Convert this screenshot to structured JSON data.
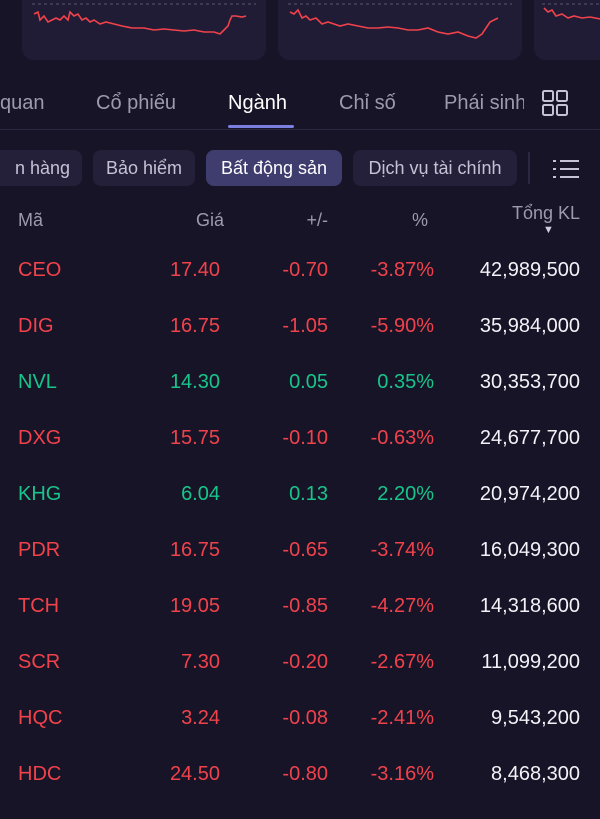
{
  "colors": {
    "down": "#f0424b",
    "up": "#17c58a",
    "accent": "#7b7fe0"
  },
  "tabs": [
    {
      "label": "quan",
      "active": false
    },
    {
      "label": "Cổ phiếu",
      "active": false
    },
    {
      "label": "Ngành",
      "active": true
    },
    {
      "label": "Chỉ số",
      "active": false
    },
    {
      "label": "Phái sinh",
      "active": false
    }
  ],
  "chips": [
    {
      "label": "n hàng",
      "active": false
    },
    {
      "label": "Bảo hiểm",
      "active": false
    },
    {
      "label": "Bất động sản",
      "active": true
    },
    {
      "label": "Dịch vụ tài chính",
      "active": false
    }
  ],
  "table": {
    "headers": {
      "symbol": "Mã",
      "price": "Giá",
      "change": "+/-",
      "percent": "%",
      "volume": "Tổng KL"
    },
    "sort_indicator": "▼",
    "rows": [
      {
        "symbol": "CEO",
        "price": "17.40",
        "change": "-0.70",
        "percent": "-3.87%",
        "volume": "42,989,500",
        "direction": "down"
      },
      {
        "symbol": "DIG",
        "price": "16.75",
        "change": "-1.05",
        "percent": "-5.90%",
        "volume": "35,984,000",
        "direction": "down"
      },
      {
        "symbol": "NVL",
        "price": "14.30",
        "change": "0.05",
        "percent": "0.35%",
        "volume": "30,353,700",
        "direction": "up"
      },
      {
        "symbol": "DXG",
        "price": "15.75",
        "change": "-0.10",
        "percent": "-0.63%",
        "volume": "24,677,700",
        "direction": "down"
      },
      {
        "symbol": "KHG",
        "price": "6.04",
        "change": "0.13",
        "percent": "2.20%",
        "volume": "20,974,200",
        "direction": "up"
      },
      {
        "symbol": "PDR",
        "price": "16.75",
        "change": "-0.65",
        "percent": "-3.74%",
        "volume": "16,049,300",
        "direction": "down"
      },
      {
        "symbol": "TCH",
        "price": "19.05",
        "change": "-0.85",
        "percent": "-4.27%",
        "volume": "14,318,600",
        "direction": "down"
      },
      {
        "symbol": "SCR",
        "price": "7.30",
        "change": "-0.20",
        "percent": "-2.67%",
        "volume": "11,099,200",
        "direction": "down"
      },
      {
        "symbol": "HQC",
        "price": "3.24",
        "change": "-0.08",
        "percent": "-2.41%",
        "volume": "9,543,200",
        "direction": "down"
      },
      {
        "symbol": "HDC",
        "price": "24.50",
        "change": "-0.80",
        "percent": "-3.16%",
        "volume": "8,468,300",
        "direction": "down"
      }
    ]
  },
  "icons": {
    "layout": "grid-icon",
    "filter_menu": "list-icon"
  }
}
